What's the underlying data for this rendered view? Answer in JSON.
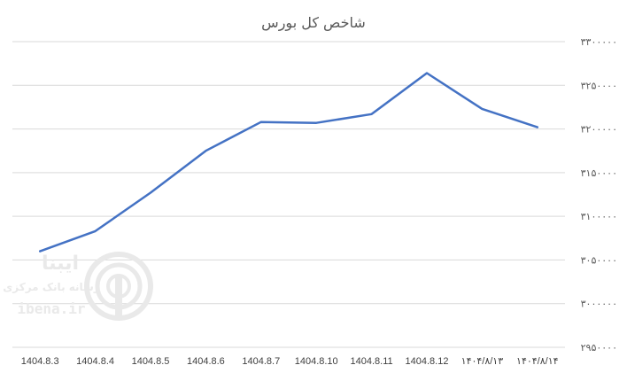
{
  "chart_data": {
    "type": "line",
    "title": "شاخص کل بورس",
    "categories": [
      "1404.8.3",
      "1404.8.4",
      "1404.8.5",
      "1404.8.6",
      "1404.8.7",
      "1404.8.10",
      "1404.8.11",
      "1404.8.12",
      "۱۴۰۴/۸/۱۳",
      "۱۴۰۴/۸/۱۴"
    ],
    "series": [
      {
        "values": [
          3060000,
          3083000,
          3127000,
          3175000,
          3208000,
          3207000,
          3217000,
          3264000,
          3223000,
          3202000
        ]
      }
    ],
    "ylim": [
      2950000,
      3300000
    ],
    "yticks": [
      {
        "value": 3300000,
        "label": "۳۳۰۰۰۰۰"
      },
      {
        "value": 3250000,
        "label": "۳۲۵۰۰۰۰"
      },
      {
        "value": 3200000,
        "label": "۳۲۰۰۰۰۰"
      },
      {
        "value": 3150000,
        "label": "۳۱۵۰۰۰۰"
      },
      {
        "value": 3100000,
        "label": "۳۱۰۰۰۰۰"
      },
      {
        "value": 3050000,
        "label": "۳۰۵۰۰۰۰"
      },
      {
        "value": 3000000,
        "label": "۳۰۰۰۰۰۰"
      },
      {
        "value": 2950000,
        "label": "۲۹۵۰۰۰۰"
      }
    ],
    "grid": true,
    "line_color": "#4472c4"
  },
  "watermark": {
    "brand": "ایبنا",
    "subtitle": "رسانه بانک مرکزی",
    "url": "ibena.ir"
  }
}
